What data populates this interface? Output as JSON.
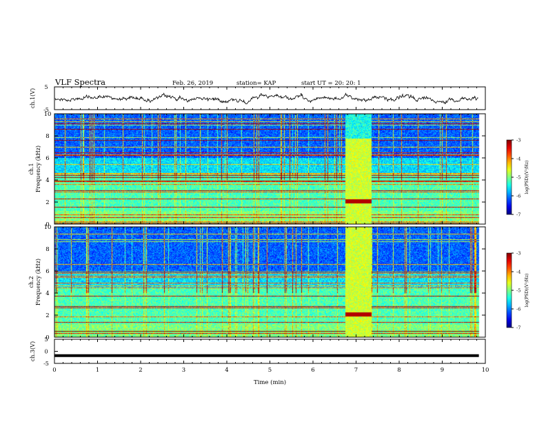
{
  "header": {
    "title": "VLF Spectra",
    "date": "Feb. 26, 2019",
    "station": "station= KAP",
    "start": "start  UT  =   20: 20: 1"
  },
  "chart_data": [
    {
      "type": "line",
      "ylabel": "ch.1(V)",
      "ylim": [
        -5,
        5
      ],
      "y_ticks": [
        "5",
        "-5"
      ],
      "xlim": [
        0,
        10
      ],
      "trace_note": "noisy waveform fluctuating around 0 V"
    },
    {
      "type": "heatmap",
      "ylabel_prefix": "ch.1",
      "ylabel": "Frequency (kHz)",
      "ylim": [
        0,
        10
      ],
      "y_ticks": [
        "0",
        "2",
        "4",
        "6",
        "8",
        "10"
      ],
      "xlim": [
        0,
        10
      ],
      "colorbar": {
        "label": "log(PSD)(V²/Hz)",
        "range": [
          -7,
          -3
        ],
        "ticks": [
          "-3",
          "-4",
          "-5",
          "-6",
          "-7"
        ]
      },
      "band_minutes": [
        6.75,
        7.35
      ]
    },
    {
      "type": "heatmap",
      "ylabel_prefix": "ch.2",
      "ylabel": "Frequency (kHz)",
      "ylim": [
        0,
        10
      ],
      "y_ticks": [
        "0",
        "2",
        "4",
        "6",
        "8",
        "10"
      ],
      "xlim": [
        0,
        10
      ],
      "colorbar": {
        "label": "log(PSD)(V²/Hz)",
        "range": [
          -7,
          -3
        ],
        "ticks": [
          "-3",
          "-4",
          "-5",
          "-6",
          "-7"
        ]
      },
      "band_minutes": [
        6.75,
        7.35
      ]
    },
    {
      "type": "line",
      "ylabel": "ch.3(V)",
      "ylim": [
        -5,
        5
      ],
      "y_ticks": [
        "5",
        "0",
        "-5"
      ],
      "xlim": [
        0,
        10
      ],
      "constant_value": -1.8,
      "xlabel": "Time (min)",
      "x_ticks": [
        "0",
        "1",
        "2",
        "3",
        "4",
        "5",
        "6",
        "7",
        "8",
        "9",
        "10"
      ]
    }
  ]
}
